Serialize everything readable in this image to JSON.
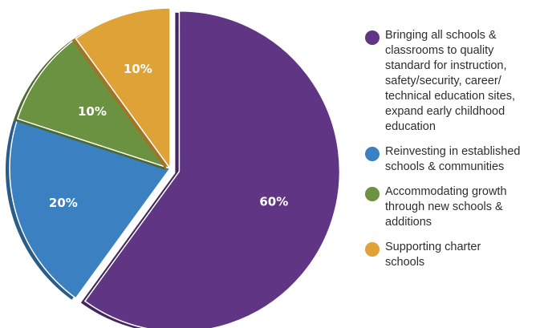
{
  "chart_data": {
    "type": "pie",
    "categories": [
      "Bringing all schools & classrooms to quality standard for instruction, safety/security, career/ technical education sites, expand early childhood education",
      "Reinvesting in established schools & communities",
      "Accommodating growth through new schools & additions",
      "Supporting charter schools"
    ],
    "values": [
      60,
      20,
      10,
      10
    ],
    "labels": [
      "60%",
      "20%",
      "10%",
      "10%"
    ],
    "colors": [
      "#5f3584",
      "#3b80c0",
      "#6a9240",
      "#dea236"
    ],
    "legend_position": "right"
  },
  "legend": {
    "items": [
      {
        "label_lines": [
          "Bringing all schools &",
          "classrooms to quality",
          "standard for instruction,",
          "safety/security, career/",
          "technical education sites,",
          "expand early childhood",
          "education"
        ]
      },
      {
        "label_lines": [
          "Reinvesting in established",
          "schools & communities"
        ]
      },
      {
        "label_lines": [
          "Accommodating growth",
          "through new schools &",
          "additions"
        ]
      },
      {
        "label_lines": [
          "Supporting charter",
          "schools"
        ]
      }
    ]
  }
}
